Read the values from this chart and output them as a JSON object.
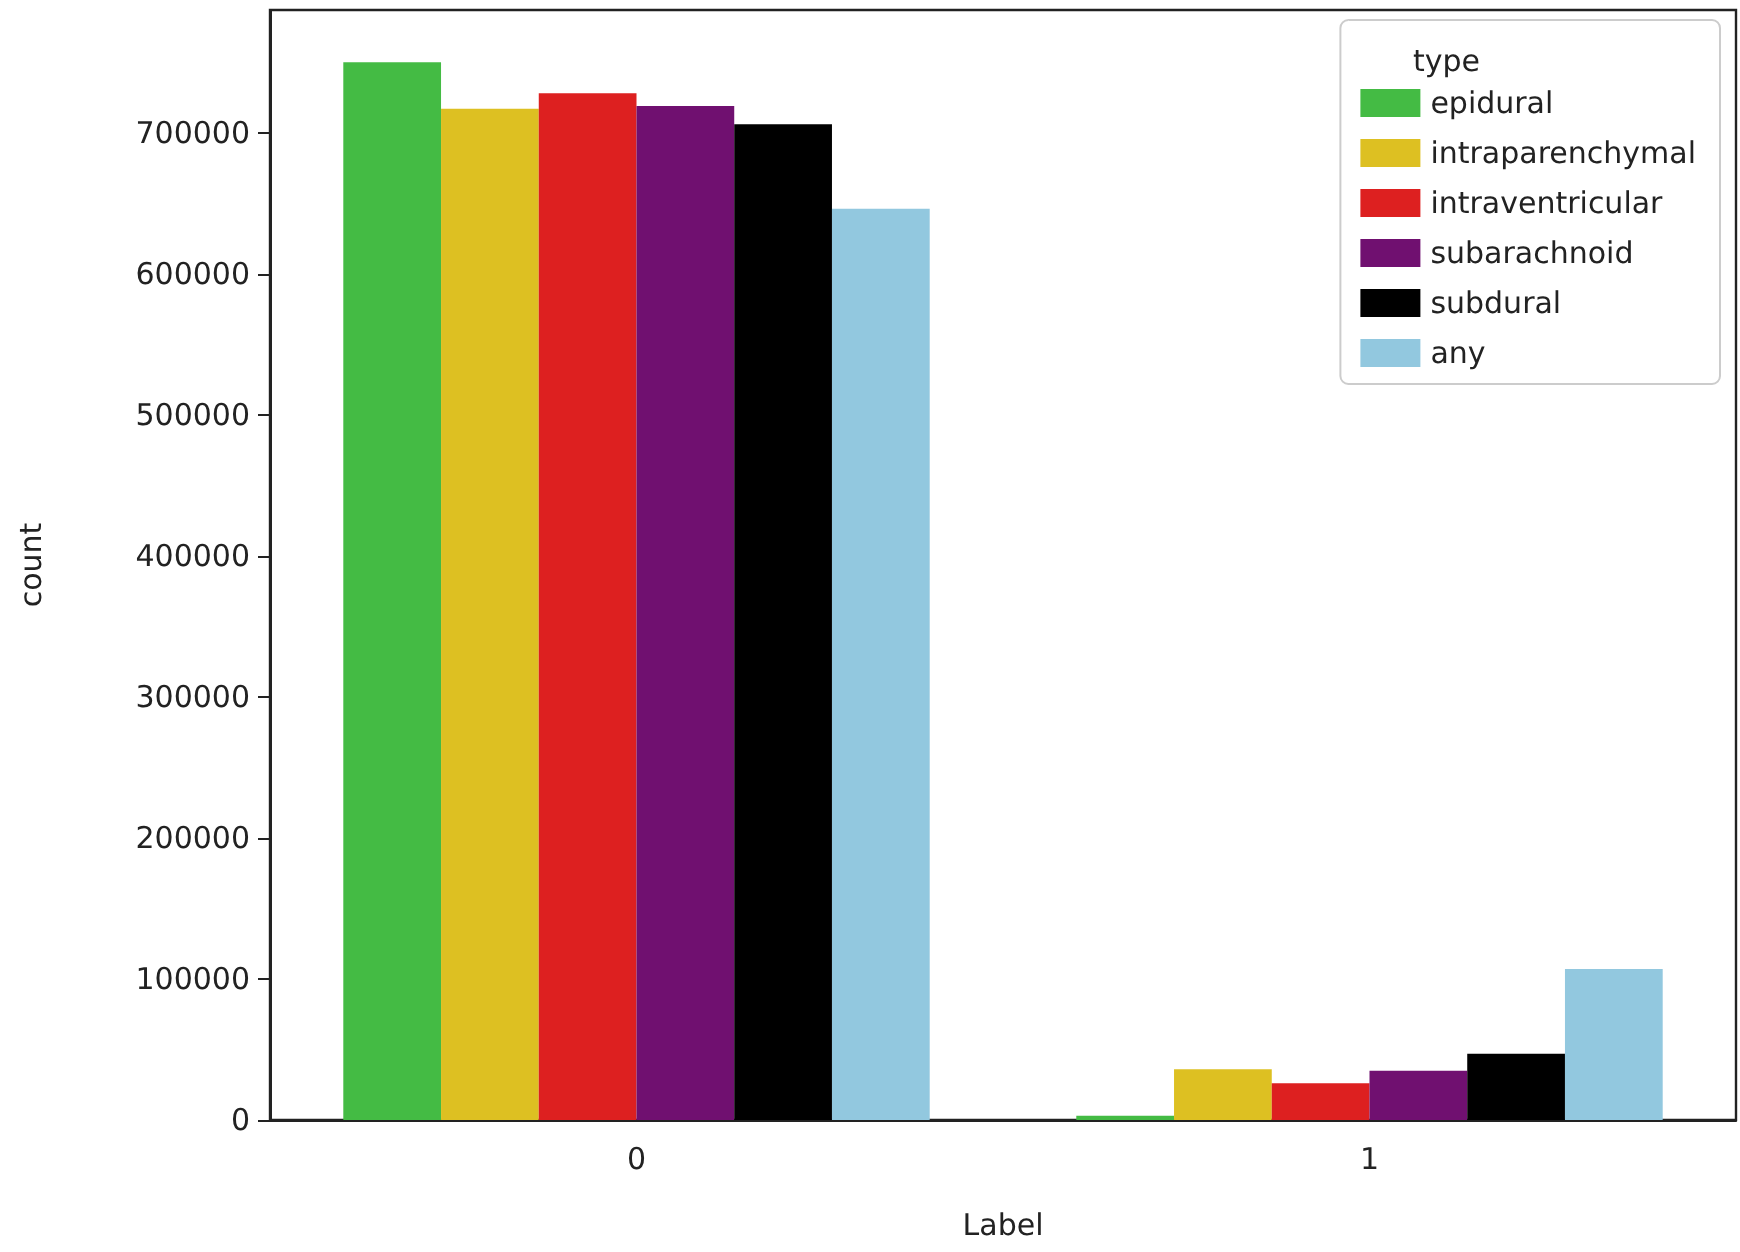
{
  "chart_data": {
    "type": "bar",
    "xlabel": "Label",
    "ylabel": "count",
    "legend_title": "type",
    "categories": [
      "0",
      "1"
    ],
    "series": [
      {
        "name": "epidural",
        "color": "#44bb44",
        "values": [
          750000,
          3000
        ]
      },
      {
        "name": "intraparenchymal",
        "color": "#ddc022",
        "values": [
          717000,
          36000
        ]
      },
      {
        "name": "intraventricular",
        "color": "#dd2020",
        "values": [
          728000,
          26000
        ]
      },
      {
        "name": "subarachnoid",
        "color": "#701070",
        "values": [
          719000,
          35000
        ]
      },
      {
        "name": "subdural",
        "color": "#000000",
        "values": [
          706000,
          47000
        ]
      },
      {
        "name": "any",
        "color": "#92c8df",
        "values": [
          646000,
          107000
        ]
      }
    ],
    "ylim": [
      0,
      787000
    ],
    "yticks": [
      0,
      100000,
      200000,
      300000,
      400000,
      500000,
      600000,
      700000
    ],
    "grid": false,
    "legend": "top right"
  }
}
